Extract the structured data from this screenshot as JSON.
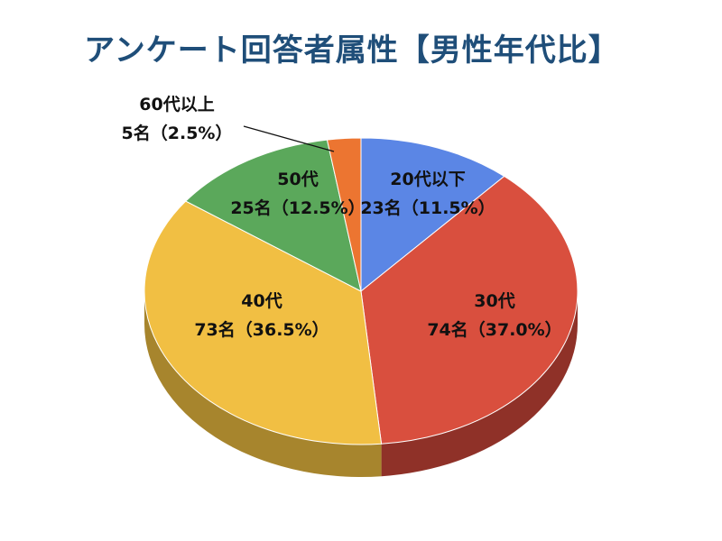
{
  "chart_data": {
    "type": "pie",
    "title": "アンケート回答者属性【男性年代比】",
    "style": "3d",
    "slices": [
      {
        "label": "20代以下",
        "count": "23名",
        "percent": "（11.5%）",
        "value": 11.5,
        "color": "#5b86e5",
        "side_color": "#3d62b5"
      },
      {
        "label": "30代",
        "count": "74名",
        "percent": "（37.0%）",
        "value": 37.0,
        "color": "#d94f3e",
        "side_color": "#8f3128"
      },
      {
        "label": "40代",
        "count": "73名",
        "percent": "（36.5%）",
        "value": 36.5,
        "color": "#f1bf43",
        "side_color": "#a7852d"
      },
      {
        "label": "50代",
        "count": "25名",
        "percent": "（12.5%）",
        "value": 12.5,
        "color": "#5ba85b",
        "side_color": "#3b7a3b"
      },
      {
        "label": "60代以上",
        "count": "5名",
        "percent": "（2.5%）",
        "value": 2.5,
        "color": "#ec7531",
        "side_color": "#a04f22"
      }
    ]
  }
}
